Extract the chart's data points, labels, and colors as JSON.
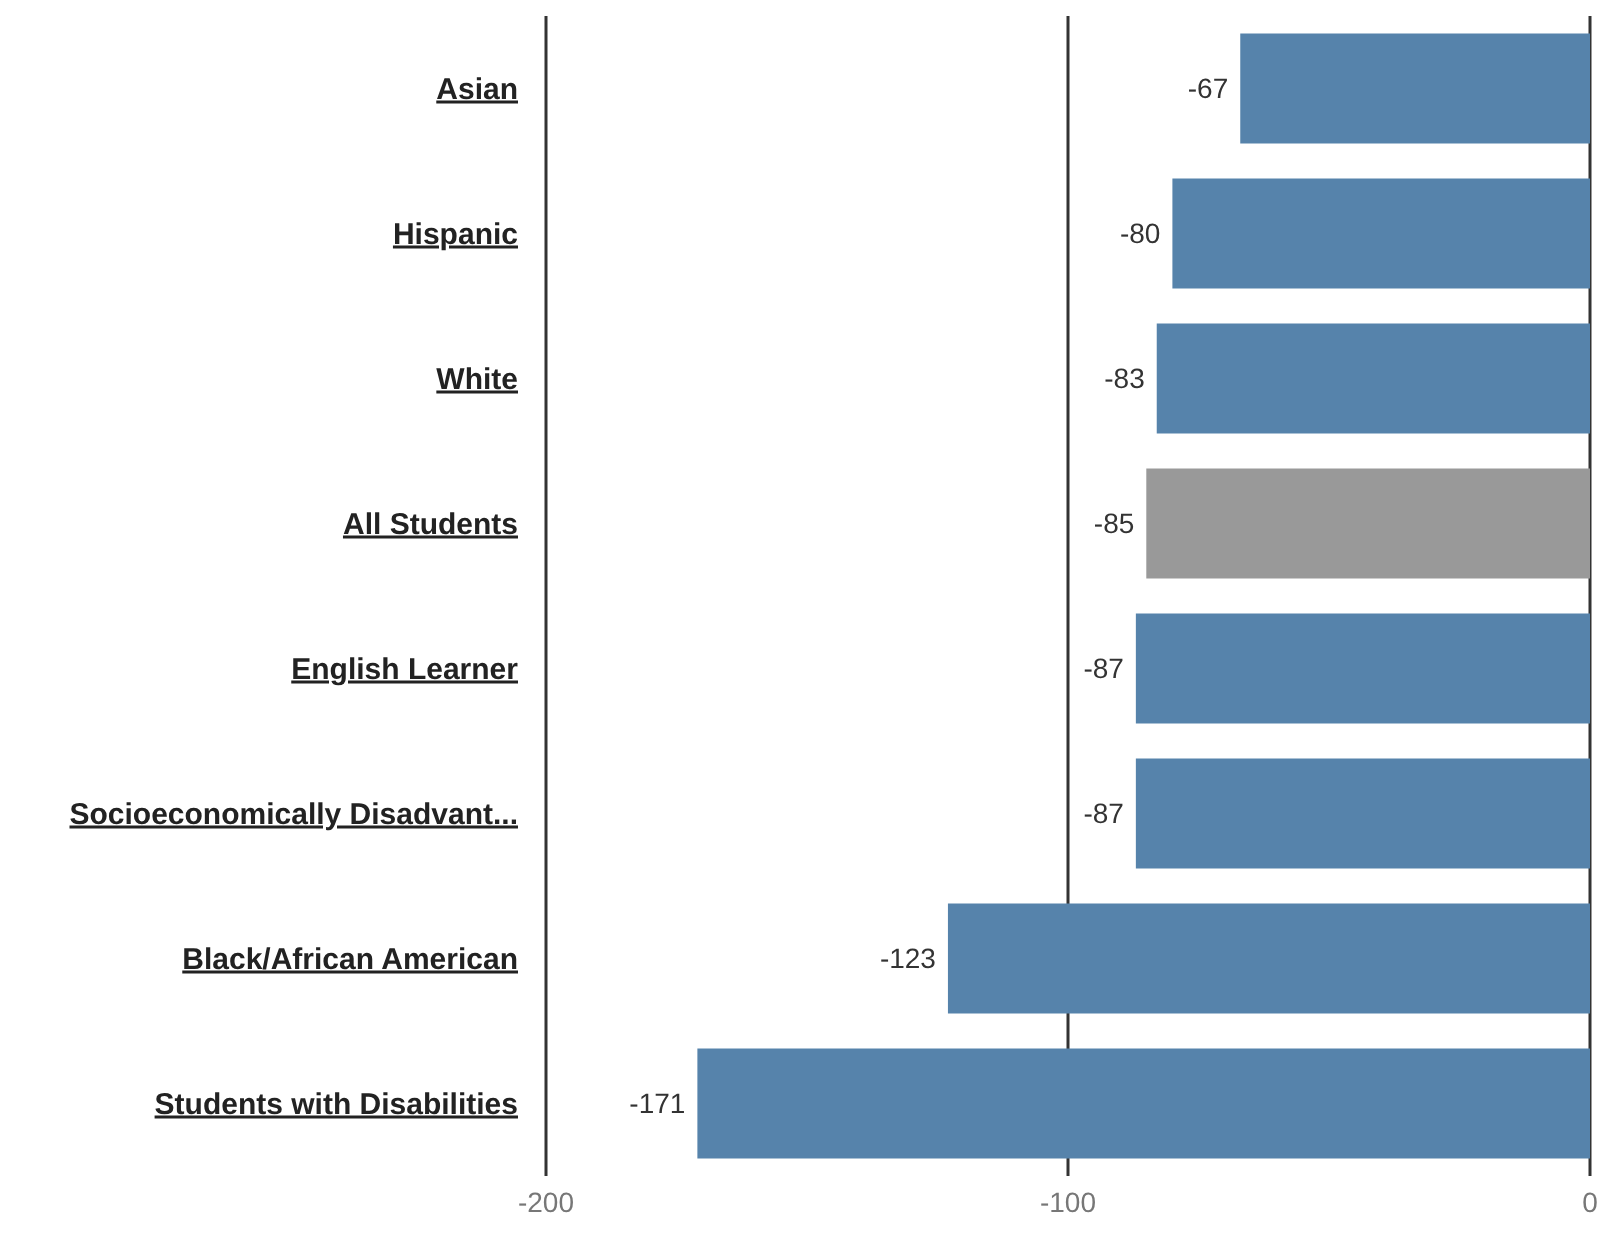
{
  "chart_data": {
    "type": "bar",
    "orientation": "horizontal",
    "categories": [
      "Asian",
      "Hispanic",
      "White",
      "All Students",
      "English Learner",
      "Socioeconomically Disadvant...",
      "Black/African American",
      "Students with Disabilities"
    ],
    "values": [
      -67,
      -80,
      -83,
      -85,
      -87,
      -87,
      -123,
      -171
    ],
    "colors": [
      "#5683ab",
      "#5683ab",
      "#5683ab",
      "#999999",
      "#5683ab",
      "#5683ab",
      "#5683ab",
      "#5683ab"
    ],
    "xlim": [
      -200,
      0
    ],
    "xticks": [
      -200,
      -100,
      0
    ],
    "grid": "x",
    "data_labels": true
  }
}
